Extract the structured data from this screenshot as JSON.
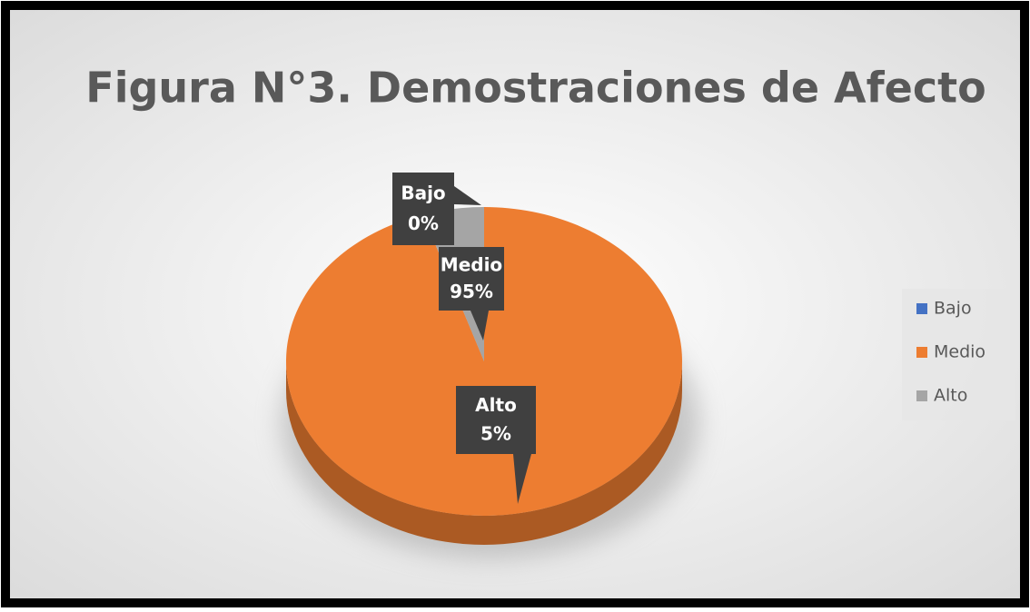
{
  "chart_data": {
    "type": "pie",
    "title": "Figura N°3. Demostraciones de Afecto",
    "categories": [
      "Bajo",
      "Medio",
      "Alto"
    ],
    "values": [
      0,
      95,
      5
    ],
    "value_labels": [
      "0%",
      "95%",
      "5%"
    ],
    "colors": [
      "#4472c4",
      "#ed7d31",
      "#a5a5a5"
    ],
    "legend": "right"
  }
}
